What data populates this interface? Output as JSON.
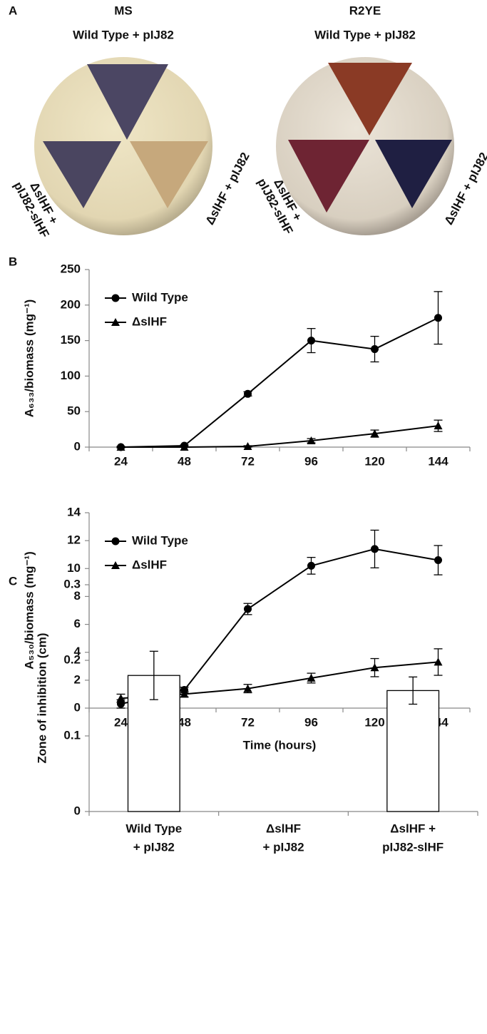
{
  "panels": {
    "a": "A",
    "b": "B",
    "c": "C"
  },
  "plates": [
    {
      "title": "MS",
      "top": "Wild Type + pIJ82",
      "left": [
        "ΔslHF +",
        "pIJ82-slHF"
      ],
      "right": "ΔslHF + pIJ82"
    },
    {
      "title": "R2YE",
      "top": "Wild Type + pIJ82",
      "left": [
        "ΔslHF +",
        "pIJ82-slHF"
      ],
      "right": "ΔslHF + pIJ82"
    }
  ],
  "chart_data": [
    {
      "type": "line",
      "ylabel": "A₆₃₃/biomass (mg⁻¹)",
      "categories": [
        "24",
        "48",
        "72",
        "96",
        "120",
        "144"
      ],
      "ylim": [
        0,
        250
      ],
      "yticks": [
        0,
        50,
        100,
        150,
        200,
        250
      ],
      "legend": "upper left",
      "series": [
        {
          "name": "Wild Type",
          "color": "#000000",
          "marker": "circle",
          "values": [
            0,
            2,
            75,
            150,
            138,
            182
          ],
          "errors": [
            1,
            1,
            3,
            17,
            18,
            37
          ]
        },
        {
          "name": "ΔslHF",
          "color": "#000000",
          "marker": "triangle",
          "values": [
            0,
            0,
            1,
            9,
            19,
            30
          ],
          "errors": [
            0,
            0,
            1,
            3,
            5,
            8
          ]
        }
      ]
    },
    {
      "type": "line",
      "ylabel": "A₅₃₀/biomass (mg⁻¹)",
      "xlabel": "Time (hours)",
      "categories": [
        "24",
        "48",
        "72",
        "96",
        "120",
        "144"
      ],
      "ylim": [
        0,
        14
      ],
      "yticks": [
        0,
        2,
        4,
        6,
        8,
        10,
        12,
        14
      ],
      "legend": "upper left",
      "series": [
        {
          "name": "Wild Type",
          "color": "#000000",
          "marker": "circle",
          "values": [
            0.3,
            1.3,
            7.1,
            10.2,
            11.4,
            10.6
          ],
          "errors": [
            0.3,
            0.2,
            0.4,
            0.6,
            1.35,
            1.05
          ]
        },
        {
          "name": "ΔslHF",
          "color": "#000000",
          "marker": "triangle",
          "values": [
            0.7,
            1.0,
            1.4,
            2.15,
            2.9,
            3.3
          ],
          "errors": [
            0.3,
            0.2,
            0.3,
            0.35,
            0.65,
            0.95
          ]
        }
      ]
    },
    {
      "type": "bar",
      "ylabel": "Zone of inhibition (cm)",
      "categories": [
        [
          "Wild Type",
          "+ pIJ82"
        ],
        [
          "ΔslHF",
          "+ pIJ82"
        ],
        [
          "ΔslHF +",
          "pIJ82-slHF"
        ]
      ],
      "ylim": [
        0,
        0.3
      ],
      "yticks": [
        0,
        0.1,
        0.2,
        0.3
      ],
      "color": "#ffffff",
      "values": [
        0.18,
        0,
        0.16
      ],
      "errors": [
        0.032,
        0,
        0.018
      ]
    }
  ]
}
